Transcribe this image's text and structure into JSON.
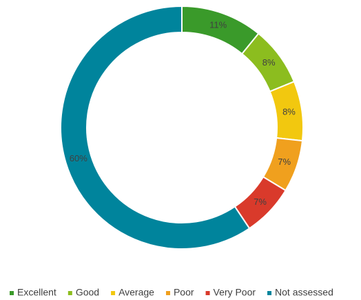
{
  "chart_data": {
    "type": "donut",
    "categories": [
      "Excellent",
      "Good",
      "Average",
      "Poor",
      "Very Poor",
      "Not assessed"
    ],
    "values": [
      11,
      8,
      8,
      7,
      7,
      60
    ],
    "value_labels": [
      "11%",
      "8%",
      "8%",
      "7%",
      "7%",
      "60%"
    ],
    "colors": [
      "#3a9a2a",
      "#8cbd1f",
      "#f2c80f",
      "#f0a01e",
      "#d93a2b",
      "#00849c"
    ],
    "legend": "bottom"
  }
}
